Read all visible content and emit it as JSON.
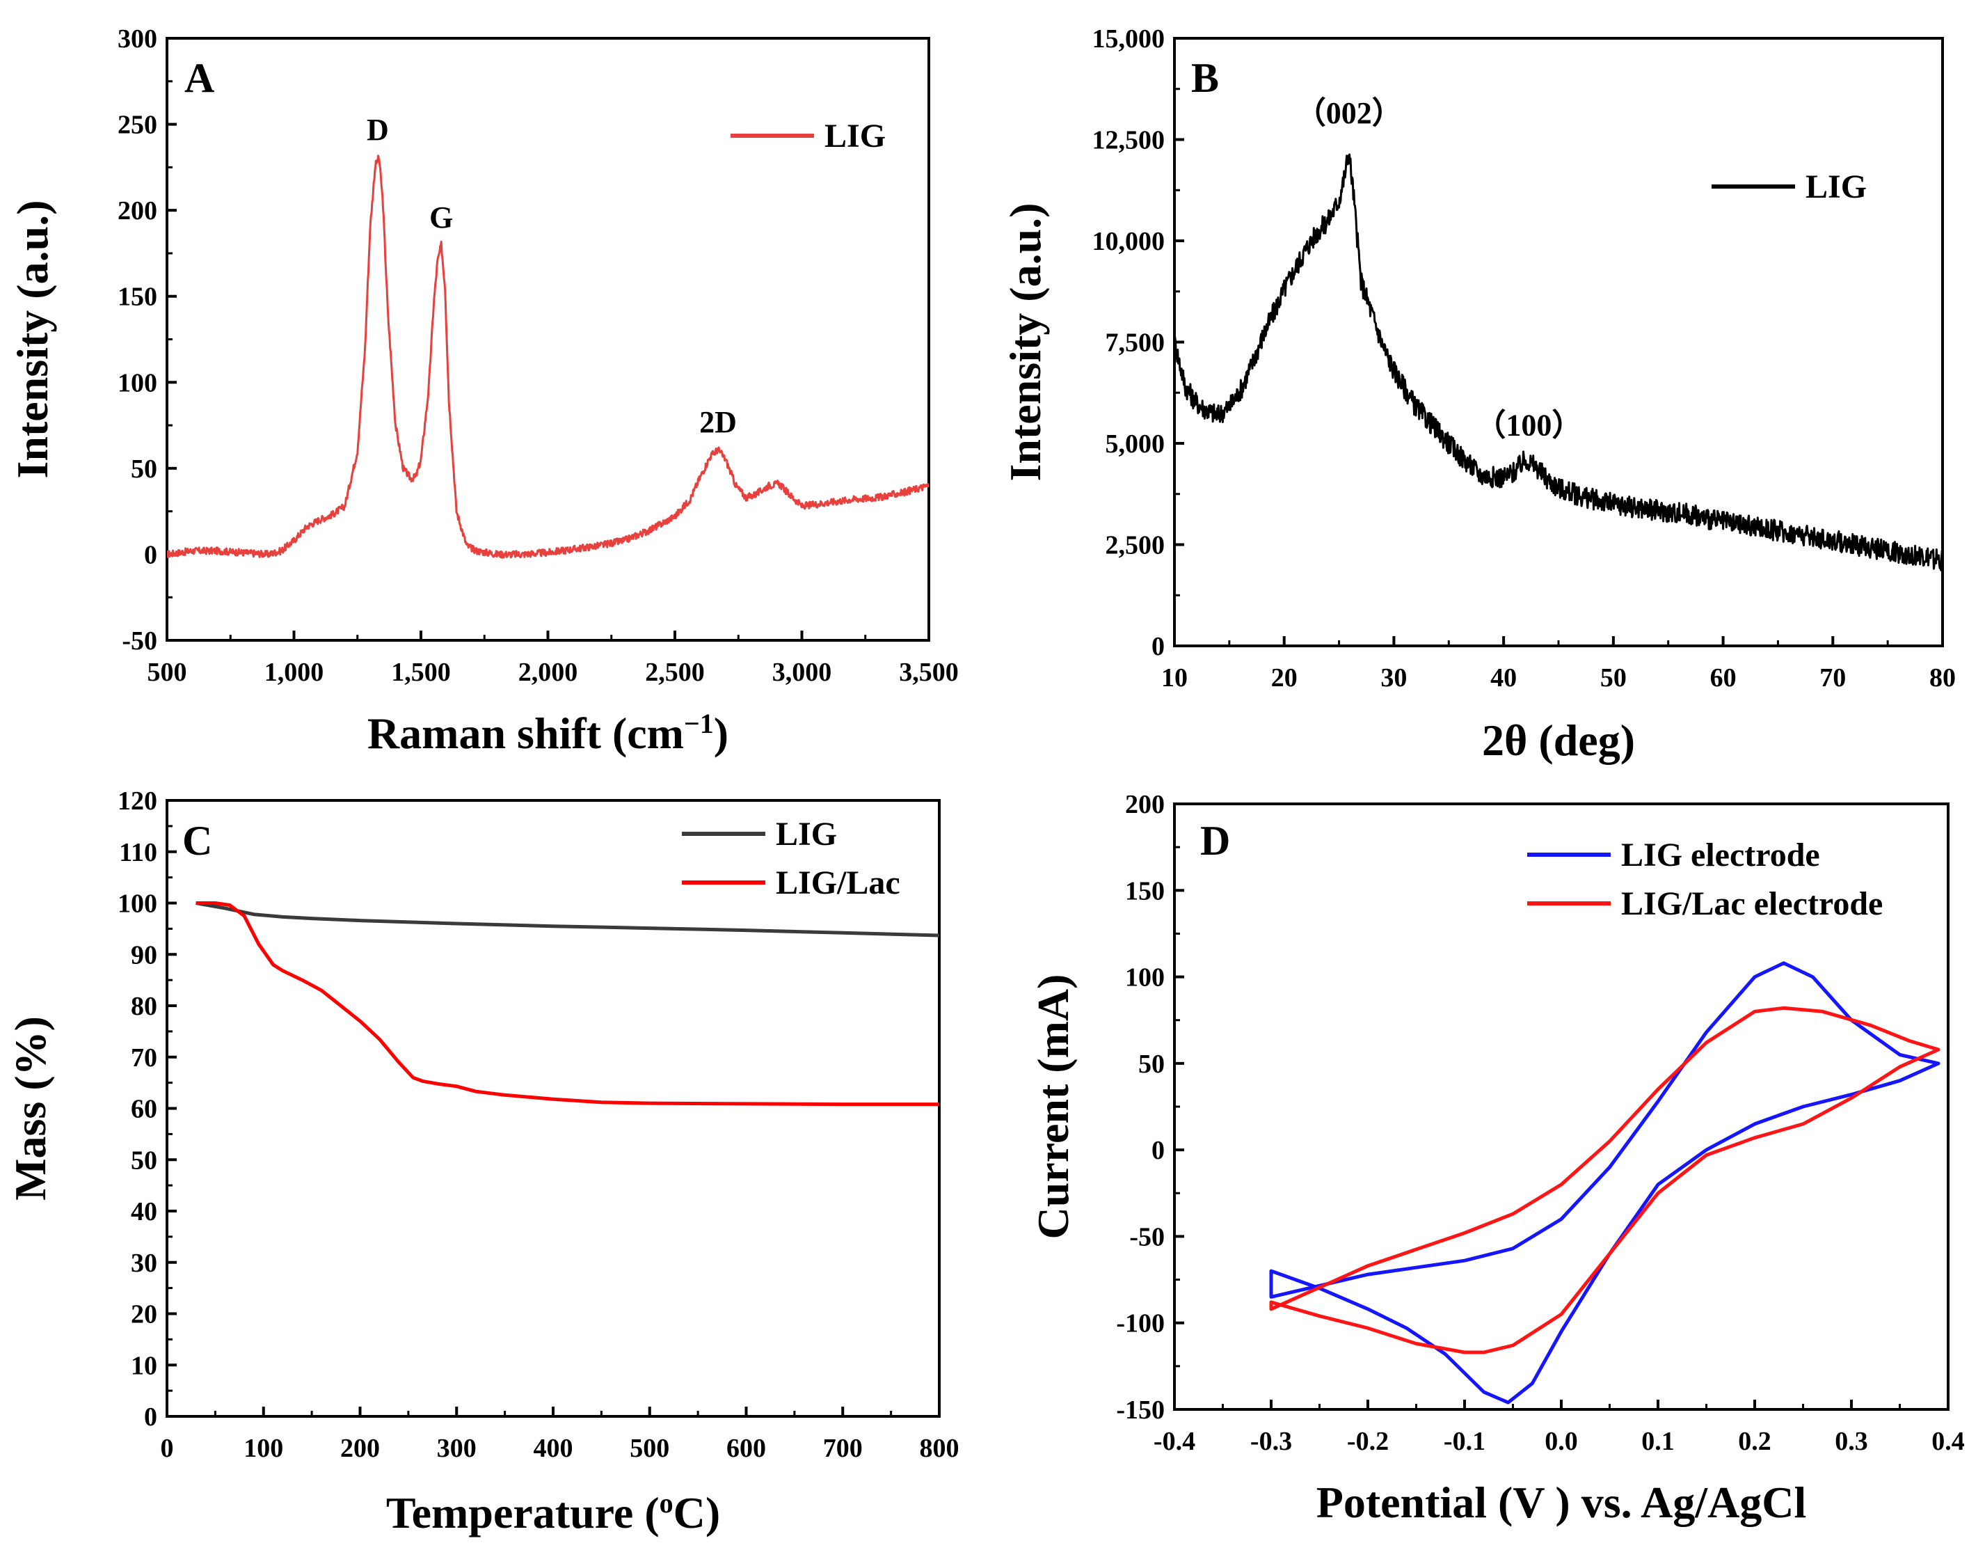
{
  "chart_data": [
    {
      "panel": "A",
      "type": "line",
      "xlabel": "Raman shift (cm",
      "xlabel_sup": "−1",
      "xlabel_end": ")",
      "ylabel": "Intensity (a.u.)",
      "xlim": [
        500,
        3500
      ],
      "ylim": [
        -50,
        300
      ],
      "xticks": [
        500,
        1000,
        1500,
        2000,
        2500,
        3000,
        3500
      ],
      "xtick_labels": [
        "500",
        "1,000",
        "1,500",
        "2,000",
        "2,500",
        "3,000",
        "3,500"
      ],
      "yticks": [
        -50,
        0,
        50,
        100,
        150,
        200,
        250,
        300
      ],
      "ytick_labels": [
        "-50",
        "0",
        "50",
        "100",
        "150",
        "200",
        "250",
        "300"
      ],
      "legend": "top-right",
      "noise": 2,
      "series": [
        {
          "name": "LIG",
          "color": "#e8403c",
          "x": [
            500,
            600,
            700,
            800,
            900,
            950,
            1000,
            1050,
            1100,
            1150,
            1200,
            1250,
            1280,
            1300,
            1320,
            1335,
            1350,
            1370,
            1400,
            1430,
            1460,
            1480,
            1500,
            1530,
            1550,
            1565,
            1580,
            1595,
            1610,
            1640,
            1680,
            1720,
            1800,
            1900,
            2000,
            2100,
            2200,
            2300,
            2400,
            2500,
            2560,
            2600,
            2640,
            2670,
            2700,
            2740,
            2780,
            2820,
            2870,
            2910,
            2950,
            3000,
            3100,
            3200,
            3300,
            3400,
            3500
          ],
          "y": [
            0,
            2,
            2,
            1,
            0,
            2,
            8,
            16,
            20,
            23,
            28,
            60,
            120,
            190,
            226,
            231,
            205,
            140,
            75,
            50,
            44,
            45,
            55,
            95,
            145,
            170,
            180,
            155,
            90,
            25,
            5,
            2,
            0,
            0,
            1,
            3,
            5,
            8,
            14,
            22,
            32,
            45,
            57,
            61,
            55,
            40,
            33,
            35,
            40,
            41,
            35,
            28,
            30,
            32,
            33,
            36,
            40
          ]
        }
      ],
      "annotations": [
        {
          "text": "D",
          "x": 1330,
          "y": 241
        },
        {
          "text": "G",
          "x": 1580,
          "y": 190
        },
        {
          "text": "2D",
          "x": 2670,
          "y": 71
        }
      ]
    },
    {
      "panel": "B",
      "type": "line",
      "xlabel": "2θ (deg)",
      "ylabel": "Intensity (a.u.)",
      "xlim": [
        10,
        80
      ],
      "ylim": [
        0,
        15000
      ],
      "xticks": [
        10,
        20,
        30,
        40,
        50,
        60,
        70,
        80
      ],
      "xtick_labels": [
        "10",
        "20",
        "30",
        "40",
        "50",
        "60",
        "70",
        "80"
      ],
      "yticks": [
        0,
        2500,
        5000,
        7500,
        10000,
        12500,
        15000
      ],
      "ytick_labels": [
        "0",
        "2,500",
        "5,000",
        "7,500",
        "10,000",
        "12,500",
        "15,000"
      ],
      "legend": "top-right",
      "noise": 260,
      "series": [
        {
          "name": "LIG",
          "color": "#000000",
          "x": [
            10,
            11,
            12,
            13,
            14,
            15,
            16,
            17,
            18,
            19,
            20,
            21,
            22,
            23,
            24,
            25,
            25.5,
            25.9,
            26.3,
            27,
            28,
            29,
            30,
            32,
            34,
            36,
            38,
            40,
            41,
            42,
            43,
            44,
            45,
            47,
            50,
            55,
            57,
            60,
            65,
            70,
            75,
            80
          ],
          "y": [
            7500,
            6400,
            6000,
            5800,
            5700,
            5900,
            6300,
            6900,
            7600,
            8200,
            8800,
            9300,
            9800,
            10200,
            10500,
            11000,
            11600,
            12200,
            11200,
            9000,
            8200,
            7400,
            6800,
            5900,
            5300,
            4700,
            4200,
            4150,
            4300,
            4600,
            4400,
            4100,
            3900,
            3700,
            3500,
            3300,
            3250,
            3050,
            2850,
            2600,
            2350,
            2100
          ]
        }
      ],
      "annotations": [
        {
          "text": "（002）",
          "x": 25.9,
          "y": 12900
        },
        {
          "text": "（100）",
          "x": 42.3,
          "y": 5200
        }
      ]
    },
    {
      "panel": "C",
      "type": "line",
      "xlabel": "Temperature (",
      "xlabel_sup": "o",
      "xlabel_end": "C)",
      "ylabel": "Mass (%)",
      "xlim": [
        0,
        800
      ],
      "ylim": [
        0,
        120
      ],
      "xticks": [
        0,
        100,
        200,
        300,
        400,
        500,
        600,
        700,
        800
      ],
      "xtick_labels": [
        "0",
        "100",
        "200",
        "300",
        "400",
        "500",
        "600",
        "700",
        "800"
      ],
      "yticks": [
        0,
        10,
        20,
        30,
        40,
        50,
        60,
        70,
        80,
        90,
        100,
        110,
        120
      ],
      "ytick_labels": [
        "0",
        "10",
        "20",
        "30",
        "40",
        "50",
        "60",
        "70",
        "80",
        "90",
        "100",
        "110",
        "120"
      ],
      "legend": "top-right",
      "series": [
        {
          "name": "LIG",
          "color": "#3a3a3a",
          "x": [
            30,
            60,
            90,
            120,
            150,
            200,
            300,
            400,
            500,
            600,
            700,
            800
          ],
          "y": [
            100,
            99,
            97.8,
            97.3,
            97.0,
            96.6,
            96.0,
            95.5,
            95.1,
            94.7,
            94.2,
            93.7
          ]
        },
        {
          "name": "LIG/Lac",
          "color": "#ff0000",
          "x": [
            30,
            50,
            65,
            80,
            95,
            110,
            120,
            140,
            160,
            180,
            200,
            220,
            240,
            255,
            265,
            280,
            300,
            320,
            350,
            400,
            450,
            500,
            600,
            700,
            800
          ],
          "y": [
            100,
            100,
            99.6,
            97.5,
            92,
            88,
            86.8,
            85,
            83,
            80,
            77,
            73.5,
            69,
            66,
            65.3,
            64.8,
            64.3,
            63.3,
            62.6,
            61.8,
            61.2,
            61.0,
            60.9,
            60.8,
            60.8
          ]
        }
      ]
    },
    {
      "panel": "D",
      "type": "line",
      "xlabel": "Potential (V ) vs. Ag/AgCl",
      "ylabel": "Current (mA)",
      "xlim": [
        -0.4,
        0.4
      ],
      "ylim": [
        -150,
        200
      ],
      "xticks": [
        -0.4,
        -0.3,
        -0.2,
        -0.1,
        0,
        0.1,
        0.2,
        0.3,
        0.4
      ],
      "xtick_labels": [
        "-0.4",
        "-0.3",
        "-0.2",
        "-0.1",
        "0.0",
        "0.1",
        "0.2",
        "0.3",
        "0.4"
      ],
      "yticks": [
        -150,
        -100,
        -50,
        0,
        50,
        100,
        150,
        200
      ],
      "ytick_labels": [
        "-150",
        "-100",
        "-50",
        "0",
        "50",
        "100",
        "150",
        "200"
      ],
      "legend": "top-right",
      "series": [
        {
          "name": "LIG electrode",
          "color": "#1515ff",
          "x": [
            -0.3,
            -0.2,
            -0.1,
            -0.05,
            0.0,
            0.05,
            0.1,
            0.15,
            0.2,
            0.23,
            0.26,
            0.3,
            0.35,
            0.39,
            0.35,
            0.3,
            0.25,
            0.2,
            0.15,
            0.1,
            0.05,
            0.0,
            -0.03,
            -0.055,
            -0.08,
            -0.12,
            -0.16,
            -0.2,
            -0.25,
            -0.3
          ],
          "y": [
            -85,
            -72,
            -64,
            -57,
            -40,
            -10,
            28,
            68,
            100,
            108,
            100,
            75,
            55,
            50,
            40,
            32,
            25,
            15,
            0,
            -20,
            -60,
            -105,
            -135,
            -146,
            -140,
            -118,
            -103,
            -92,
            -80,
            -70
          ]
        },
        {
          "name": "LIG/Lac electrode",
          "color": "#ff1515",
          "x": [
            -0.3,
            -0.2,
            -0.1,
            -0.05,
            0.0,
            0.05,
            0.1,
            0.15,
            0.2,
            0.23,
            0.27,
            0.32,
            0.36,
            0.39,
            0.35,
            0.3,
            0.25,
            0.2,
            0.15,
            0.1,
            0.05,
            0.0,
            -0.05,
            -0.08,
            -0.1,
            -0.15,
            -0.2,
            -0.25,
            -0.3
          ],
          "y": [
            -92,
            -67,
            -48,
            -37,
            -20,
            5,
            35,
            62,
            80,
            82,
            80,
            72,
            63,
            58,
            48,
            30,
            15,
            7,
            -3,
            -25,
            -60,
            -95,
            -113,
            -117,
            -117,
            -112,
            -103,
            -96,
            -88
          ]
        }
      ]
    }
  ],
  "panels": {
    "A": {
      "label": "A"
    },
    "B": {
      "label": "B"
    },
    "C": {
      "label": "C"
    },
    "D": {
      "label": "D"
    }
  }
}
